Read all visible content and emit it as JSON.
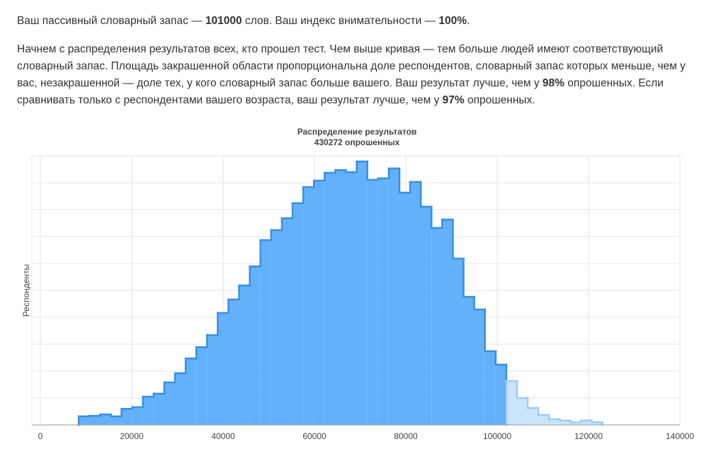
{
  "intro": {
    "parts": [
      "Ваш пассивный словарный запас — ",
      "101000",
      " слов. Ваш индекс внимательности — ",
      "100%",
      "."
    ]
  },
  "summary": {
    "parts": [
      "Начнем с распределения результатов всех, кто прошел тест. Чем выше кривая — тем больше людей имеют соответствующий словарный запас. Площадь закрашенной области пропорциональна доле респондентов, словарный запас которых меньше, чем у вас, незакрашенной — доле тех, у кого словарный запас больше вашего. Ваш результат лучше, чем у ",
      "98%",
      " опрошенных. Если сравнивать только с респондентами вашего возраста, ваш результат лучше, чем у ",
      "97%",
      " опрошенных."
    ]
  },
  "chart_data": {
    "type": "histogram",
    "title": "Распределение результатов",
    "subtitle": "430272 опрошенных",
    "y_label": "Респонденты",
    "bins": [
      8400,
      10740,
      13080,
      15420,
      17760,
      20100,
      22440,
      24780,
      27120,
      29460,
      31800,
      34140,
      36480,
      38820,
      41160,
      43500,
      45840,
      48180,
      50520,
      52860,
      55200,
      57540,
      59880,
      62220,
      64560,
      66900,
      69240,
      71580,
      73920,
      76260,
      78600,
      80940,
      83280,
      85620,
      87960,
      90300,
      92640,
      94980,
      97320,
      99660,
      102000,
      104340,
      106680,
      109020,
      111360,
      113700,
      116040,
      118380,
      120720,
      123060
    ],
    "series": [
      {
        "color": "#63b0fb",
        "edge_color": "#3a8fe2",
        "values": [
          0.32,
          0.34,
          0.39,
          0.32,
          0.6,
          0.66,
          1.05,
          1.16,
          1.58,
          1.92,
          2.47,
          2.89,
          3.34,
          4.16,
          4.66,
          5.18,
          5.89,
          6.87,
          7.24,
          7.68,
          8.24,
          8.84,
          9.08,
          9.37,
          9.47,
          9.39,
          9.79,
          9.11,
          9.16,
          9.53,
          8.63,
          9.03,
          8.11,
          7.32,
          7.63,
          6.18,
          4.76,
          4.29,
          2.74,
          2.24,
          null,
          null,
          null,
          null,
          null,
          null,
          null,
          null,
          null
        ]
      },
      {
        "color": "#cae4fc",
        "edge_color": "#9ccbf5",
        "values": [
          null,
          null,
          null,
          null,
          null,
          null,
          null,
          null,
          null,
          null,
          null,
          null,
          null,
          null,
          null,
          null,
          null,
          null,
          null,
          null,
          null,
          null,
          null,
          null,
          null,
          null,
          null,
          null,
          null,
          null,
          null,
          null,
          null,
          null,
          null,
          null,
          null,
          null,
          null,
          null,
          1.63,
          1.0,
          0.63,
          0.37,
          0.21,
          0.16,
          0.1,
          0.16,
          0.1
        ]
      }
    ],
    "xlim": [
      0,
      140000
    ],
    "xticks": [
      0,
      20000,
      40000,
      60000,
      80000,
      100000,
      120000,
      140000
    ],
    "ylim": [
      0,
      10
    ],
    "ygrid": [
      1,
      2,
      3,
      4,
      5,
      6,
      7,
      8,
      9,
      10
    ],
    "grid": true
  }
}
